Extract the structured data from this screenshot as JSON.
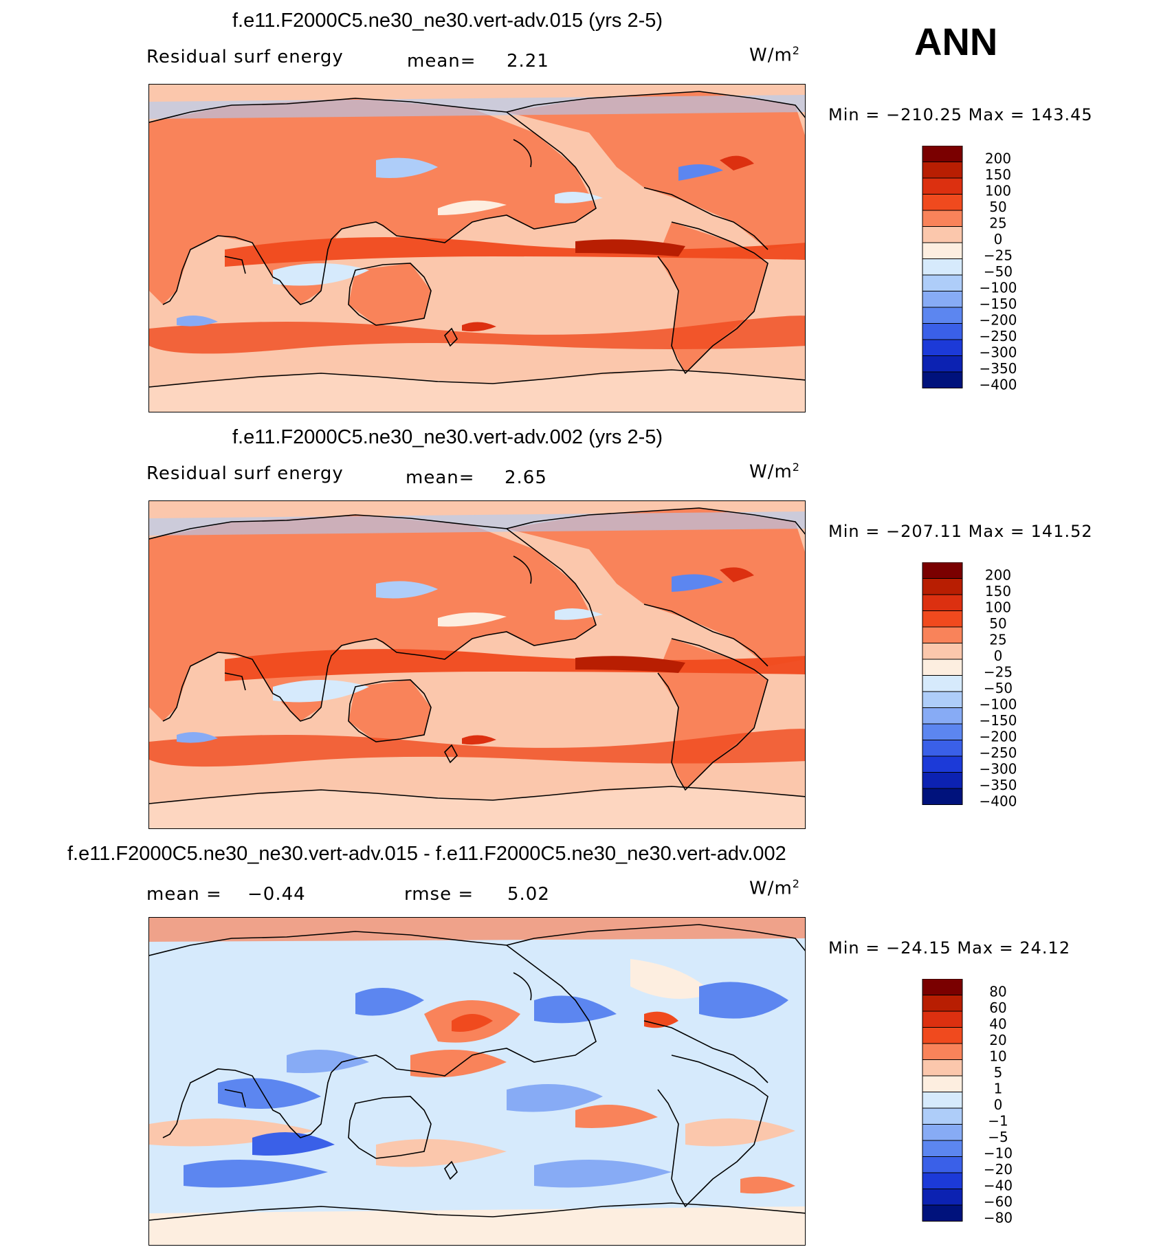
{
  "header": {
    "season": "ANN"
  },
  "units": {
    "base": "W/m",
    "exp": "2"
  },
  "panels": [
    {
      "title": "f.e11.F2000C5.ne30_ne30.vert-adv.015 (yrs 2-5)",
      "variable": "Residual surf energy",
      "mean_label": "mean=",
      "mean_value": "2.21",
      "min_max": "Min = −210.25 Max = 143.45",
      "colorbar_labels": [
        "200",
        "150",
        "100",
        "50",
        "25",
        "0",
        "−25",
        "−50",
        "−100",
        "−150",
        "−200",
        "−250",
        "−300",
        "−350",
        "−400"
      ]
    },
    {
      "title": "f.e11.F2000C5.ne30_ne30.vert-adv.002 (yrs 2-5)",
      "variable": "Residual surf energy",
      "mean_label": "mean=",
      "mean_value": "2.65",
      "min_max": "Min = −207.11 Max = 141.52",
      "colorbar_labels": [
        "200",
        "150",
        "100",
        "50",
        "25",
        "0",
        "−25",
        "−50",
        "−100",
        "−150",
        "−200",
        "−250",
        "−300",
        "−350",
        "−400"
      ]
    },
    {
      "title": "f.e11.F2000C5.ne30_ne30.vert-adv.015 - f.e11.F2000C5.ne30_ne30.vert-adv.002",
      "mean_label": "mean =",
      "mean_value": "−0.44",
      "rmse_label": "rmse =",
      "rmse_value": "5.02",
      "min_max": "Min = −24.15 Max =  24.12",
      "colorbar_labels": [
        "80",
        "60",
        "40",
        "20",
        "10",
        "5",
        "1",
        "0",
        "−1",
        "−5",
        "−10",
        "−20",
        "−40",
        "−60",
        "−80"
      ]
    }
  ],
  "colors": {
    "abs_scale": [
      "#7a0000",
      "#b81e02",
      "#dc3010",
      "#f04a1e",
      "#f9835a",
      "#fbc7ac",
      "#fdeee0",
      "#d6eafc",
      "#aecdf9",
      "#87abf5",
      "#5c86f0",
      "#3a60e8",
      "#1c3ad8",
      "#0c22b2",
      "#00127c"
    ],
    "diff_scale": [
      "#7a0000",
      "#b81e02",
      "#dc3010",
      "#f04a1e",
      "#f9835a",
      "#fbc7ac",
      "#fdeee0",
      "#d6eafc",
      "#aecdf9",
      "#87abf5",
      "#5c86f0",
      "#3a60e8",
      "#1c3ad8",
      "#0c22b2",
      "#00127c"
    ]
  },
  "chart_data": [
    {
      "type": "heatmap",
      "title": "f.e11.F2000C5.ne30_ne30.vert-adv.015 (yrs 2-5)",
      "field": "Residual surf energy",
      "units": "W/m2",
      "mean": 2.21,
      "min": -210.25,
      "max": 143.45,
      "contour_levels": [
        -400,
        -350,
        -300,
        -250,
        -200,
        -150,
        -100,
        -50,
        -25,
        0,
        25,
        50,
        100,
        150,
        200
      ]
    },
    {
      "type": "heatmap",
      "title": "f.e11.F2000C5.ne30_ne30.vert-adv.002 (yrs 2-5)",
      "field": "Residual surf energy",
      "units": "W/m2",
      "mean": 2.65,
      "min": -207.11,
      "max": 141.52,
      "contour_levels": [
        -400,
        -350,
        -300,
        -250,
        -200,
        -150,
        -100,
        -50,
        -25,
        0,
        25,
        50,
        100,
        150,
        200
      ]
    },
    {
      "type": "heatmap",
      "title": "f.e11.F2000C5.ne30_ne30.vert-adv.015 - f.e11.F2000C5.ne30_ne30.vert-adv.002",
      "units": "W/m2",
      "mean": -0.44,
      "rmse": 5.02,
      "min": -24.15,
      "max": 24.12,
      "contour_levels": [
        -80,
        -60,
        -40,
        -20,
        -10,
        -5,
        -1,
        0,
        1,
        5,
        10,
        20,
        40,
        60,
        80
      ]
    }
  ]
}
